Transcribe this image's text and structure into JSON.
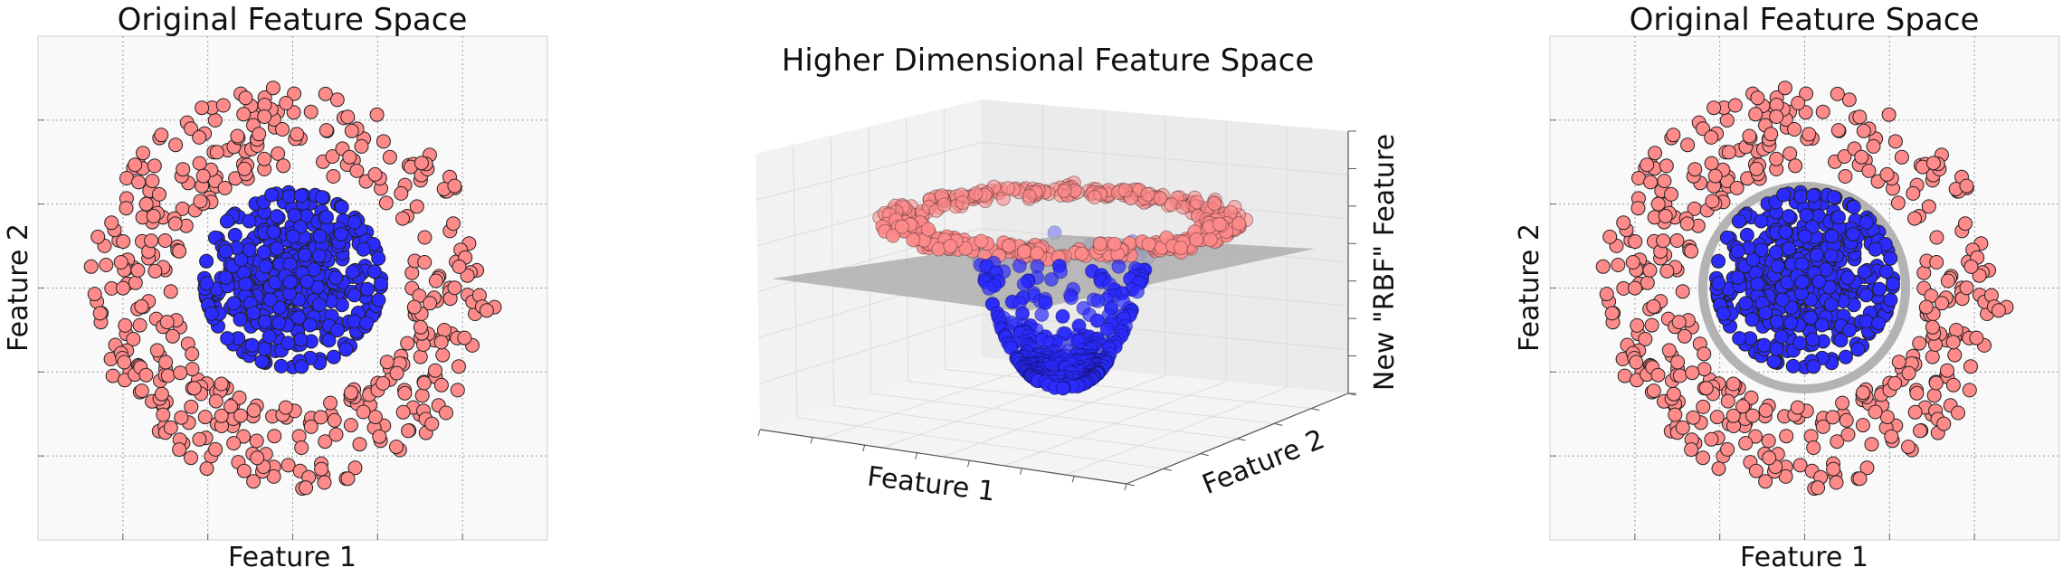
{
  "chart_data": [
    {
      "type": "scatter",
      "title": "Original Feature Space",
      "xlabel": "Feature 1",
      "ylabel": "Feature 2",
      "xlim": [
        -1.5,
        1.5
      ],
      "ylim": [
        -1.5,
        1.5
      ],
      "grid": true,
      "tick_labels_shown": false,
      "series": [
        {
          "color": "#ff8a8a",
          "points_count": 420,
          "distribution": "ring",
          "radius_range": [
            0.7,
            1.2
          ]
        },
        {
          "color": "#2b2bff",
          "points_count": 420,
          "distribution": "blob",
          "center": [
            0.0,
            0.05
          ],
          "spread": 0.25
        }
      ]
    },
    {
      "type": "scatter3d",
      "title": "Higher Dimensional Feature Space",
      "xlabel": "Feature 1",
      "ylabel": "Feature 2",
      "zlabel": "New \"RBF\" Feature",
      "grid": true,
      "plane": {
        "color": "#a9a9a9",
        "z_level": 0.65
      },
      "series": [
        {
          "color": "#ff8a8a",
          "points_count": 420,
          "distribution": "high ring"
        },
        {
          "color": "#2b2bff",
          "points_count": 420,
          "distribution": "low bowl"
        }
      ]
    },
    {
      "type": "scatter",
      "title": "Original Feature Space",
      "xlabel": "Feature 1",
      "ylabel": "Feature 2",
      "xlim": [
        -1.5,
        1.5
      ],
      "ylim": [
        -1.5,
        1.5
      ],
      "grid": true,
      "tick_labels_shown": false,
      "series": [
        {
          "color": "#ff8a8a",
          "points_count": 420,
          "distribution": "ring",
          "radius_range": [
            0.7,
            1.2
          ]
        },
        {
          "color": "#2b2bff",
          "points_count": 420,
          "distribution": "blob",
          "center": [
            0.0,
            0.05
          ],
          "spread": 0.25
        }
      ],
      "decision_boundary": {
        "shape": "circle",
        "center": [
          0.0,
          0.0
        ],
        "radius": 0.62,
        "color": "#b3b3b3"
      }
    }
  ]
}
